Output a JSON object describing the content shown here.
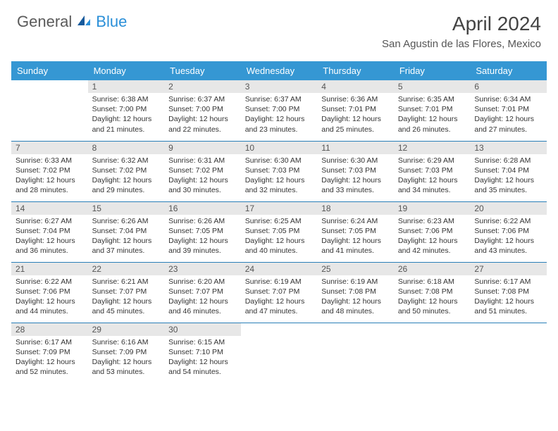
{
  "logo": {
    "text1": "General",
    "text2": "Blue"
  },
  "title": "April 2024",
  "location": "San Agustin de las Flores, Mexico",
  "colors": {
    "header_bg": "#3597d3",
    "header_text": "#ffffff",
    "daynum_bg": "#e7e7e7",
    "daynum_text": "#555555",
    "row_border": "#2a7fb8",
    "logo_blue": "#2a8fd8",
    "logo_gray": "#5a5a5a"
  },
  "dayHeaders": [
    "Sunday",
    "Monday",
    "Tuesday",
    "Wednesday",
    "Thursday",
    "Friday",
    "Saturday"
  ],
  "weeks": [
    [
      {
        "empty": true
      },
      {
        "num": "1",
        "sunrise": "6:38 AM",
        "sunset": "7:00 PM",
        "daylight": "12 hours and 21 minutes."
      },
      {
        "num": "2",
        "sunrise": "6:37 AM",
        "sunset": "7:00 PM",
        "daylight": "12 hours and 22 minutes."
      },
      {
        "num": "3",
        "sunrise": "6:37 AM",
        "sunset": "7:00 PM",
        "daylight": "12 hours and 23 minutes."
      },
      {
        "num": "4",
        "sunrise": "6:36 AM",
        "sunset": "7:01 PM",
        "daylight": "12 hours and 25 minutes."
      },
      {
        "num": "5",
        "sunrise": "6:35 AM",
        "sunset": "7:01 PM",
        "daylight": "12 hours and 26 minutes."
      },
      {
        "num": "6",
        "sunrise": "6:34 AM",
        "sunset": "7:01 PM",
        "daylight": "12 hours and 27 minutes."
      }
    ],
    [
      {
        "num": "7",
        "sunrise": "6:33 AM",
        "sunset": "7:02 PM",
        "daylight": "12 hours and 28 minutes."
      },
      {
        "num": "8",
        "sunrise": "6:32 AM",
        "sunset": "7:02 PM",
        "daylight": "12 hours and 29 minutes."
      },
      {
        "num": "9",
        "sunrise": "6:31 AM",
        "sunset": "7:02 PM",
        "daylight": "12 hours and 30 minutes."
      },
      {
        "num": "10",
        "sunrise": "6:30 AM",
        "sunset": "7:03 PM",
        "daylight": "12 hours and 32 minutes."
      },
      {
        "num": "11",
        "sunrise": "6:30 AM",
        "sunset": "7:03 PM",
        "daylight": "12 hours and 33 minutes."
      },
      {
        "num": "12",
        "sunrise": "6:29 AM",
        "sunset": "7:03 PM",
        "daylight": "12 hours and 34 minutes."
      },
      {
        "num": "13",
        "sunrise": "6:28 AM",
        "sunset": "7:04 PM",
        "daylight": "12 hours and 35 minutes."
      }
    ],
    [
      {
        "num": "14",
        "sunrise": "6:27 AM",
        "sunset": "7:04 PM",
        "daylight": "12 hours and 36 minutes."
      },
      {
        "num": "15",
        "sunrise": "6:26 AM",
        "sunset": "7:04 PM",
        "daylight": "12 hours and 37 minutes."
      },
      {
        "num": "16",
        "sunrise": "6:26 AM",
        "sunset": "7:05 PM",
        "daylight": "12 hours and 39 minutes."
      },
      {
        "num": "17",
        "sunrise": "6:25 AM",
        "sunset": "7:05 PM",
        "daylight": "12 hours and 40 minutes."
      },
      {
        "num": "18",
        "sunrise": "6:24 AM",
        "sunset": "7:05 PM",
        "daylight": "12 hours and 41 minutes."
      },
      {
        "num": "19",
        "sunrise": "6:23 AM",
        "sunset": "7:06 PM",
        "daylight": "12 hours and 42 minutes."
      },
      {
        "num": "20",
        "sunrise": "6:22 AM",
        "sunset": "7:06 PM",
        "daylight": "12 hours and 43 minutes."
      }
    ],
    [
      {
        "num": "21",
        "sunrise": "6:22 AM",
        "sunset": "7:06 PM",
        "daylight": "12 hours and 44 minutes."
      },
      {
        "num": "22",
        "sunrise": "6:21 AM",
        "sunset": "7:07 PM",
        "daylight": "12 hours and 45 minutes."
      },
      {
        "num": "23",
        "sunrise": "6:20 AM",
        "sunset": "7:07 PM",
        "daylight": "12 hours and 46 minutes."
      },
      {
        "num": "24",
        "sunrise": "6:19 AM",
        "sunset": "7:07 PM",
        "daylight": "12 hours and 47 minutes."
      },
      {
        "num": "25",
        "sunrise": "6:19 AM",
        "sunset": "7:08 PM",
        "daylight": "12 hours and 48 minutes."
      },
      {
        "num": "26",
        "sunrise": "6:18 AM",
        "sunset": "7:08 PM",
        "daylight": "12 hours and 50 minutes."
      },
      {
        "num": "27",
        "sunrise": "6:17 AM",
        "sunset": "7:08 PM",
        "daylight": "12 hours and 51 minutes."
      }
    ],
    [
      {
        "num": "28",
        "sunrise": "6:17 AM",
        "sunset": "7:09 PM",
        "daylight": "12 hours and 52 minutes."
      },
      {
        "num": "29",
        "sunrise": "6:16 AM",
        "sunset": "7:09 PM",
        "daylight": "12 hours and 53 minutes."
      },
      {
        "num": "30",
        "sunrise": "6:15 AM",
        "sunset": "7:10 PM",
        "daylight": "12 hours and 54 minutes."
      },
      {
        "empty": true
      },
      {
        "empty": true
      },
      {
        "empty": true
      },
      {
        "empty": true
      }
    ]
  ],
  "labels": {
    "sunrise": "Sunrise:",
    "sunset": "Sunset:",
    "daylight": "Daylight:"
  }
}
